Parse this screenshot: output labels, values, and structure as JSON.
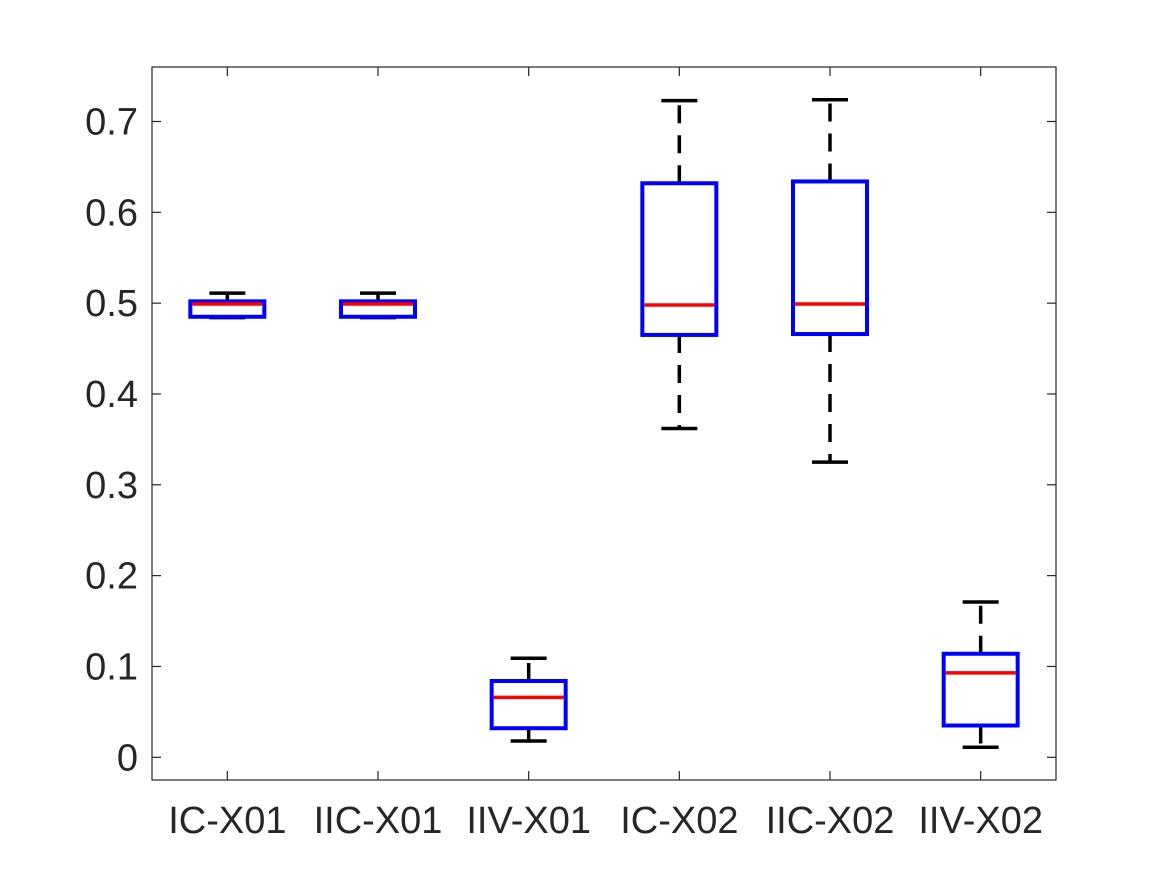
{
  "chart_data": {
    "type": "boxplot",
    "title": "",
    "xlabel": "",
    "ylabel": "",
    "categories": [
      "IC-X01",
      "IIC-X01",
      "IIV-X01",
      "IC-X02",
      "IIC-X02",
      "IIV-X02"
    ],
    "boxes": [
      {
        "whisker_low": 0.484,
        "q1": 0.485,
        "median": 0.499,
        "q3": 0.502,
        "whisker_high": 0.511
      },
      {
        "whisker_low": 0.484,
        "q1": 0.485,
        "median": 0.499,
        "q3": 0.502,
        "whisker_high": 0.511
      },
      {
        "whisker_low": 0.018,
        "q1": 0.032,
        "median": 0.066,
        "q3": 0.084,
        "whisker_high": 0.109
      },
      {
        "whisker_low": 0.362,
        "q1": 0.465,
        "median": 0.498,
        "q3": 0.632,
        "whisker_high": 0.723
      },
      {
        "whisker_low": 0.325,
        "q1": 0.466,
        "median": 0.499,
        "q3": 0.634,
        "whisker_high": 0.724
      },
      {
        "whisker_low": 0.011,
        "q1": 0.035,
        "median": 0.093,
        "q3": 0.114,
        "whisker_high": 0.171
      }
    ],
    "yticks": [
      0,
      0.1,
      0.2,
      0.3,
      0.4,
      0.5,
      0.6,
      0.7
    ],
    "ylim": [
      -0.025,
      0.76
    ],
    "grid": false,
    "colors": {
      "box": "#0000ff",
      "median": "#ff0000",
      "whisker": "#000000",
      "axis": "#262626"
    }
  }
}
